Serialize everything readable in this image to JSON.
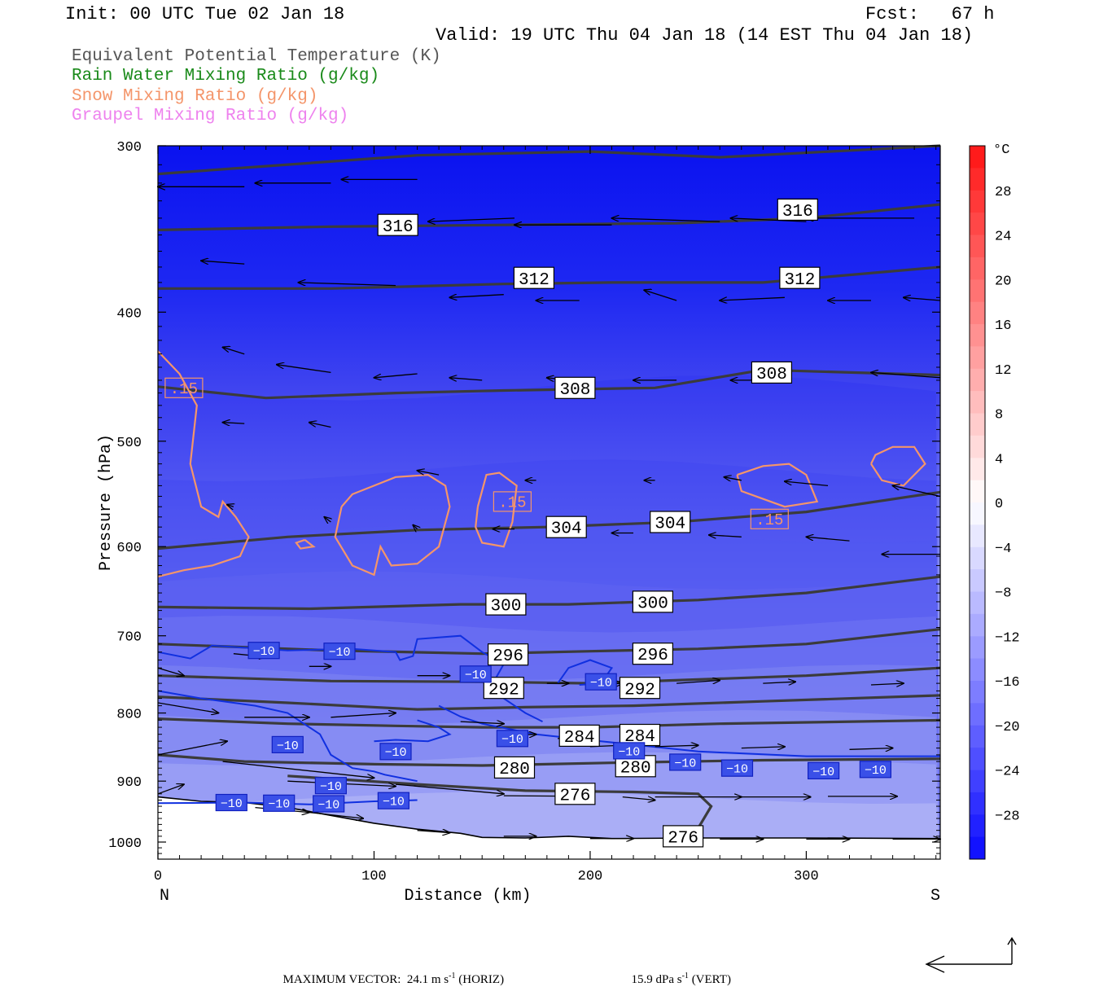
{
  "header": {
    "init": "Init: 00 UTC Tue 02 Jan 18",
    "fcst": "Fcst:   67 h",
    "valid": "Valid: 19 UTC Thu 04 Jan 18 (14 EST Thu 04 Jan 18)"
  },
  "legend": [
    {
      "label": "Equivalent Potential Temperature (K)",
      "color": "#555555"
    },
    {
      "label": "Rain Water Mixing Ratio (g/kg)",
      "color": "#1a8a1a"
    },
    {
      "label": "Snow Mixing Ratio (g/kg)",
      "color": "#f4956a"
    },
    {
      "label": "Graupel Mixing Ratio (g/kg)",
      "color": "#ee82ee"
    }
  ],
  "chart_data": {
    "type": "heatmap",
    "xlabel": "Distance (km)",
    "ylabel": "Pressure (hPa)",
    "xlim": [
      0,
      362
    ],
    "ylim": [
      1030,
      300
    ],
    "y_scale": "log",
    "x_ticks": [
      0,
      100,
      200,
      300
    ],
    "y_ticks": [
      300,
      400,
      500,
      600,
      700,
      800,
      900,
      1000
    ],
    "x_end_labels": {
      "left": "N",
      "right": "S"
    },
    "colorbar": {
      "unit": "°C",
      "ticks": [
        28,
        24,
        20,
        16,
        12,
        8,
        4,
        0,
        -4,
        -8,
        -12,
        -16,
        -20,
        -24,
        -28
      ],
      "range": [
        -32,
        32
      ]
    },
    "theta_e_contours": [
      {
        "value": 316,
        "labels": [
          [
            111,
            344
          ],
          [
            296,
            335
          ]
        ]
      },
      {
        "value": 312,
        "labels": [
          [
            174,
            377
          ],
          [
            297,
            377
          ]
        ]
      },
      {
        "value": 308,
        "labels": [
          [
            193,
            456
          ],
          [
            284,
            444
          ]
        ]
      },
      {
        "value": 304,
        "labels": [
          [
            189,
            580
          ],
          [
            237,
            575
          ]
        ]
      },
      {
        "value": 300,
        "labels": [
          [
            161,
            663
          ],
          [
            229,
            660
          ]
        ]
      },
      {
        "value": 296,
        "labels": [
          [
            162,
            723
          ],
          [
            229,
            722
          ]
        ]
      },
      {
        "value": 292,
        "labels": [
          [
            160,
            766
          ],
          [
            223,
            766
          ]
        ]
      },
      {
        "value": 284,
        "labels": [
          [
            195,
            832
          ],
          [
            223,
            831
          ]
        ]
      },
      {
        "value": 280,
        "labels": [
          [
            165,
            879
          ],
          [
            221,
            877
          ]
        ]
      },
      {
        "value": 276,
        "labels": [
          [
            193,
            920
          ],
          [
            243,
            990
          ]
        ]
      }
    ],
    "temperature_contours": [
      {
        "value": -10,
        "labels": [
          [
            49,
            718
          ],
          [
            84,
            719
          ],
          [
            147,
            748
          ],
          [
            205,
            758
          ],
          [
            164,
            836
          ],
          [
            218,
            854
          ],
          [
            110,
            855
          ],
          [
            60,
            845
          ],
          [
            80,
            907
          ],
          [
            244,
            871
          ],
          [
            268,
            880
          ],
          [
            308,
            884
          ],
          [
            332,
            882
          ],
          [
            34,
            934
          ],
          [
            56,
            935
          ],
          [
            79,
            936
          ],
          [
            109,
            931
          ]
        ]
      }
    ],
    "snow_contours": [
      {
        "value": 0.15,
        "labels": [
          [
            12,
            456
          ],
          [
            164,
            555
          ],
          [
            283,
            572
          ]
        ]
      }
    ],
    "max_vector": {
      "horizontal": "24.1",
      "horizontal_unit": "m s",
      "horizontal_exp": "-1",
      "horizontal_tag": "(HORIZ)",
      "vertical": "15.9",
      "vertical_unit": "dPa s",
      "vertical_exp": "-1",
      "vertical_tag": "(VERT)"
    }
  },
  "footer": {
    "prefix": "MAXIMUM VECTOR:"
  }
}
